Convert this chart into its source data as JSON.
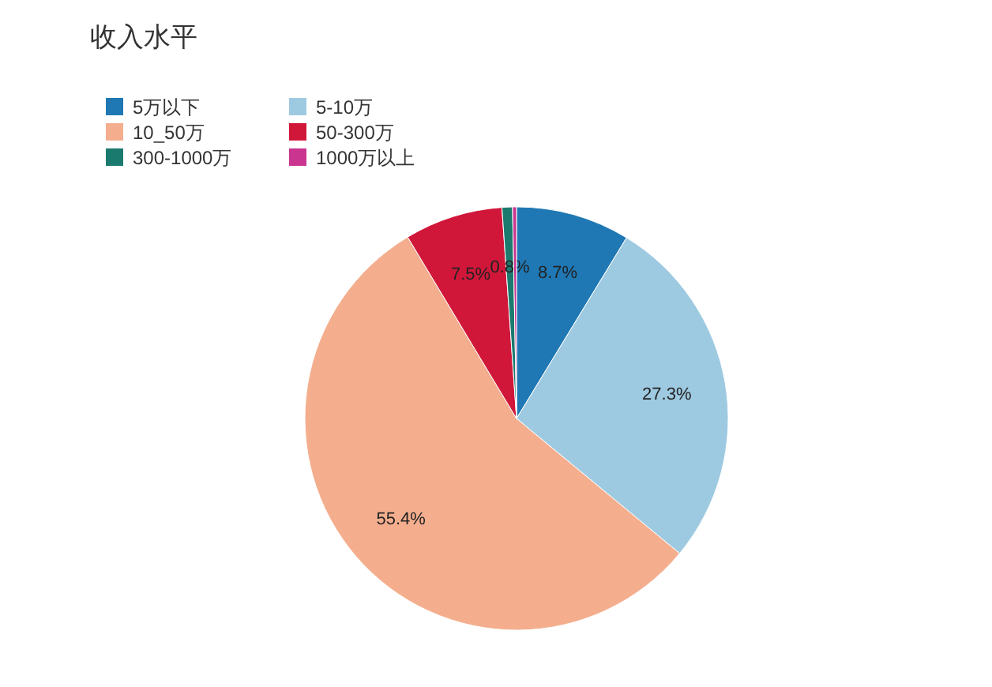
{
  "chart_data": {
    "type": "pie",
    "title": "收入水平",
    "categories": [
      "5万以下",
      "5-10万",
      "10_50万",
      "50-300万",
      "300-1000万",
      "1000万以上"
    ],
    "values": [
      8.7,
      27.3,
      55.4,
      7.5,
      0.8,
      0.3
    ],
    "colors": [
      "#1f78b4",
      "#9ecae1",
      "#f4ae8e",
      "#d0173a",
      "#1b7a6e",
      "#c9358f"
    ],
    "value_labels": [
      "8.7%",
      "27.3%",
      "55.4%",
      "7.5%",
      "0.8%",
      null
    ],
    "legend": "top left"
  }
}
